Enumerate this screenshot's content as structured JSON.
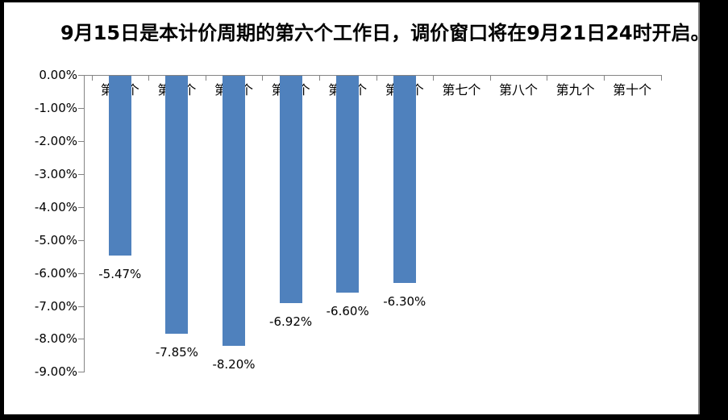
{
  "title": "9月15日是本计价周期的第六个工作日，调价窗口将在9月21日24时开启。",
  "chart_data": {
    "type": "bar",
    "title": "9月15日是本计价周期的第六个工作日，调价窗口将在9月21日24时开启。",
    "categories": [
      "第一个",
      "第二个",
      "第三个",
      "第四个",
      "第五个",
      "第六个",
      "第七个",
      "第八个",
      "第九个",
      "第十个"
    ],
    "values": [
      -5.47,
      -7.85,
      -8.2,
      -6.92,
      -6.6,
      -6.3,
      null,
      null,
      null,
      null
    ],
    "data_labels": [
      "-5.47%",
      "-7.85%",
      "-8.20%",
      "-6.92%",
      "-6.60%",
      "-6.30%",
      null,
      null,
      null,
      null
    ],
    "y_tick_labels": [
      "0.00%",
      "-1.00%",
      "-2.00%",
      "-3.00%",
      "-4.00%",
      "-5.00%",
      "-6.00%",
      "-7.00%",
      "-8.00%",
      "-9.00%"
    ],
    "ylim": [
      -9,
      0
    ],
    "xlabel": "",
    "ylabel": "",
    "grid": false,
    "legend": false,
    "bar_color": "#4F81BD",
    "axis_color": "#848484",
    "text_color": "#000000",
    "background_color": "#FFFFFF",
    "frame_color": "#000000"
  }
}
